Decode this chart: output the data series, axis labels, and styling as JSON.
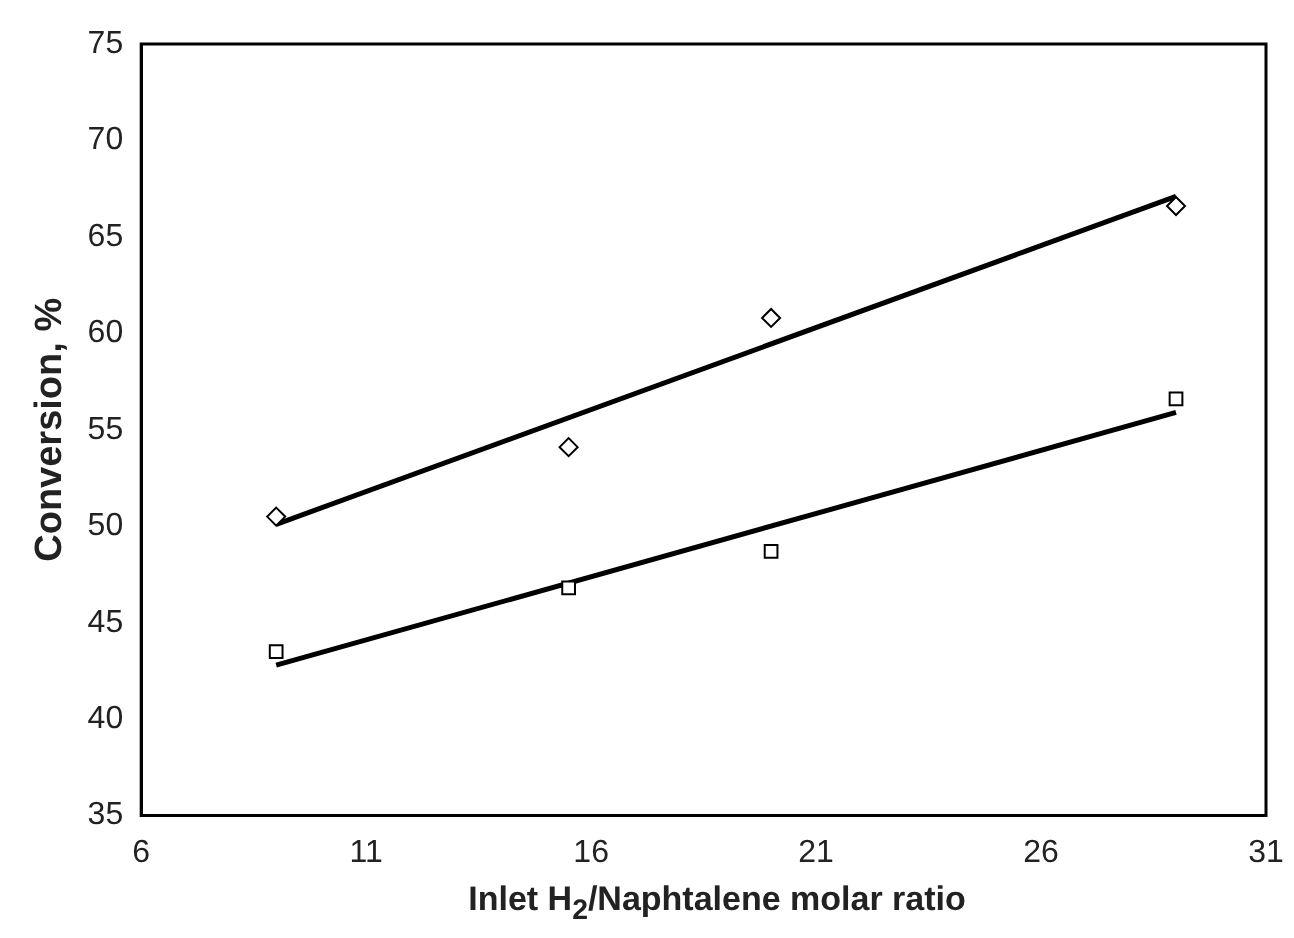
{
  "chart_data": {
    "type": "scatter",
    "xlabel": "Inlet H$_{2}$/Naphtalene molar ratio",
    "ylabel": "Conversion, %",
    "xlim": [
      6,
      31
    ],
    "xticks": [
      6,
      11,
      16,
      21,
      26,
      31
    ],
    "ylim": [
      35,
      75
    ],
    "yticks": [
      35,
      40,
      45,
      50,
      55,
      60,
      65,
      70,
      75
    ],
    "grid": false,
    "legend": false,
    "series": [
      {
        "marker": "diamond",
        "color": "#000000",
        "x": [
          9,
          15.5,
          20,
          29
        ],
        "values": [
          50.5,
          54.1,
          60.8,
          66.6
        ]
      },
      {
        "marker": "square",
        "color": "#000000",
        "x": [
          9,
          15.5,
          20,
          29
        ],
        "values": [
          43.5,
          46.8,
          48.7,
          56.6
        ]
      },
      {
        "type": "line",
        "marker": "none",
        "line_style": "solid",
        "color": "#000000",
        "x": [
          9,
          29
        ],
        "values": [
          50.1,
          67.1
        ]
      },
      {
        "type": "line",
        "marker": "none",
        "line_style": "solid",
        "color": "#000000",
        "x": [
          9,
          29
        ],
        "values": [
          42.8,
          55.9
        ]
      }
    ]
  }
}
